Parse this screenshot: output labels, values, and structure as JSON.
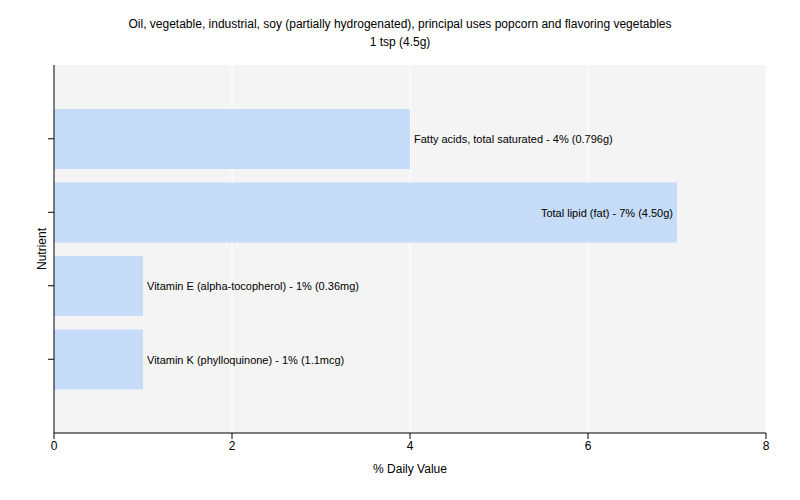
{
  "chart_data": {
    "type": "bar",
    "title": "Oil, vegetable, industrial, soy (partially hydrogenated), principal uses popcorn and flavoring vegetables",
    "subtitle": "1 tsp (4.5g)",
    "x_label": "% Daily Value",
    "y_label": "Nutrient",
    "orientation": "horizontal",
    "categories": [
      null,
      null,
      null,
      null
    ],
    "values": [
      4,
      7,
      1,
      1
    ],
    "value_labels": [
      "Fatty acids, total saturated - 4% (0.796g)",
      "Total lipid (fat) - 7% (4.50g)",
      "Vitamin E (alpha-tocopherol) - 1% (0.36mg)",
      "Vitamin K (phylloquinone) - 1% (1.1mcg)"
    ],
    "data_labels": true,
    "color": "#c6dcf8",
    "xlim": [
      0,
      8
    ],
    "xticks": [
      0,
      2,
      4,
      6,
      8
    ],
    "grid": true,
    "tick_labels": "x"
  }
}
